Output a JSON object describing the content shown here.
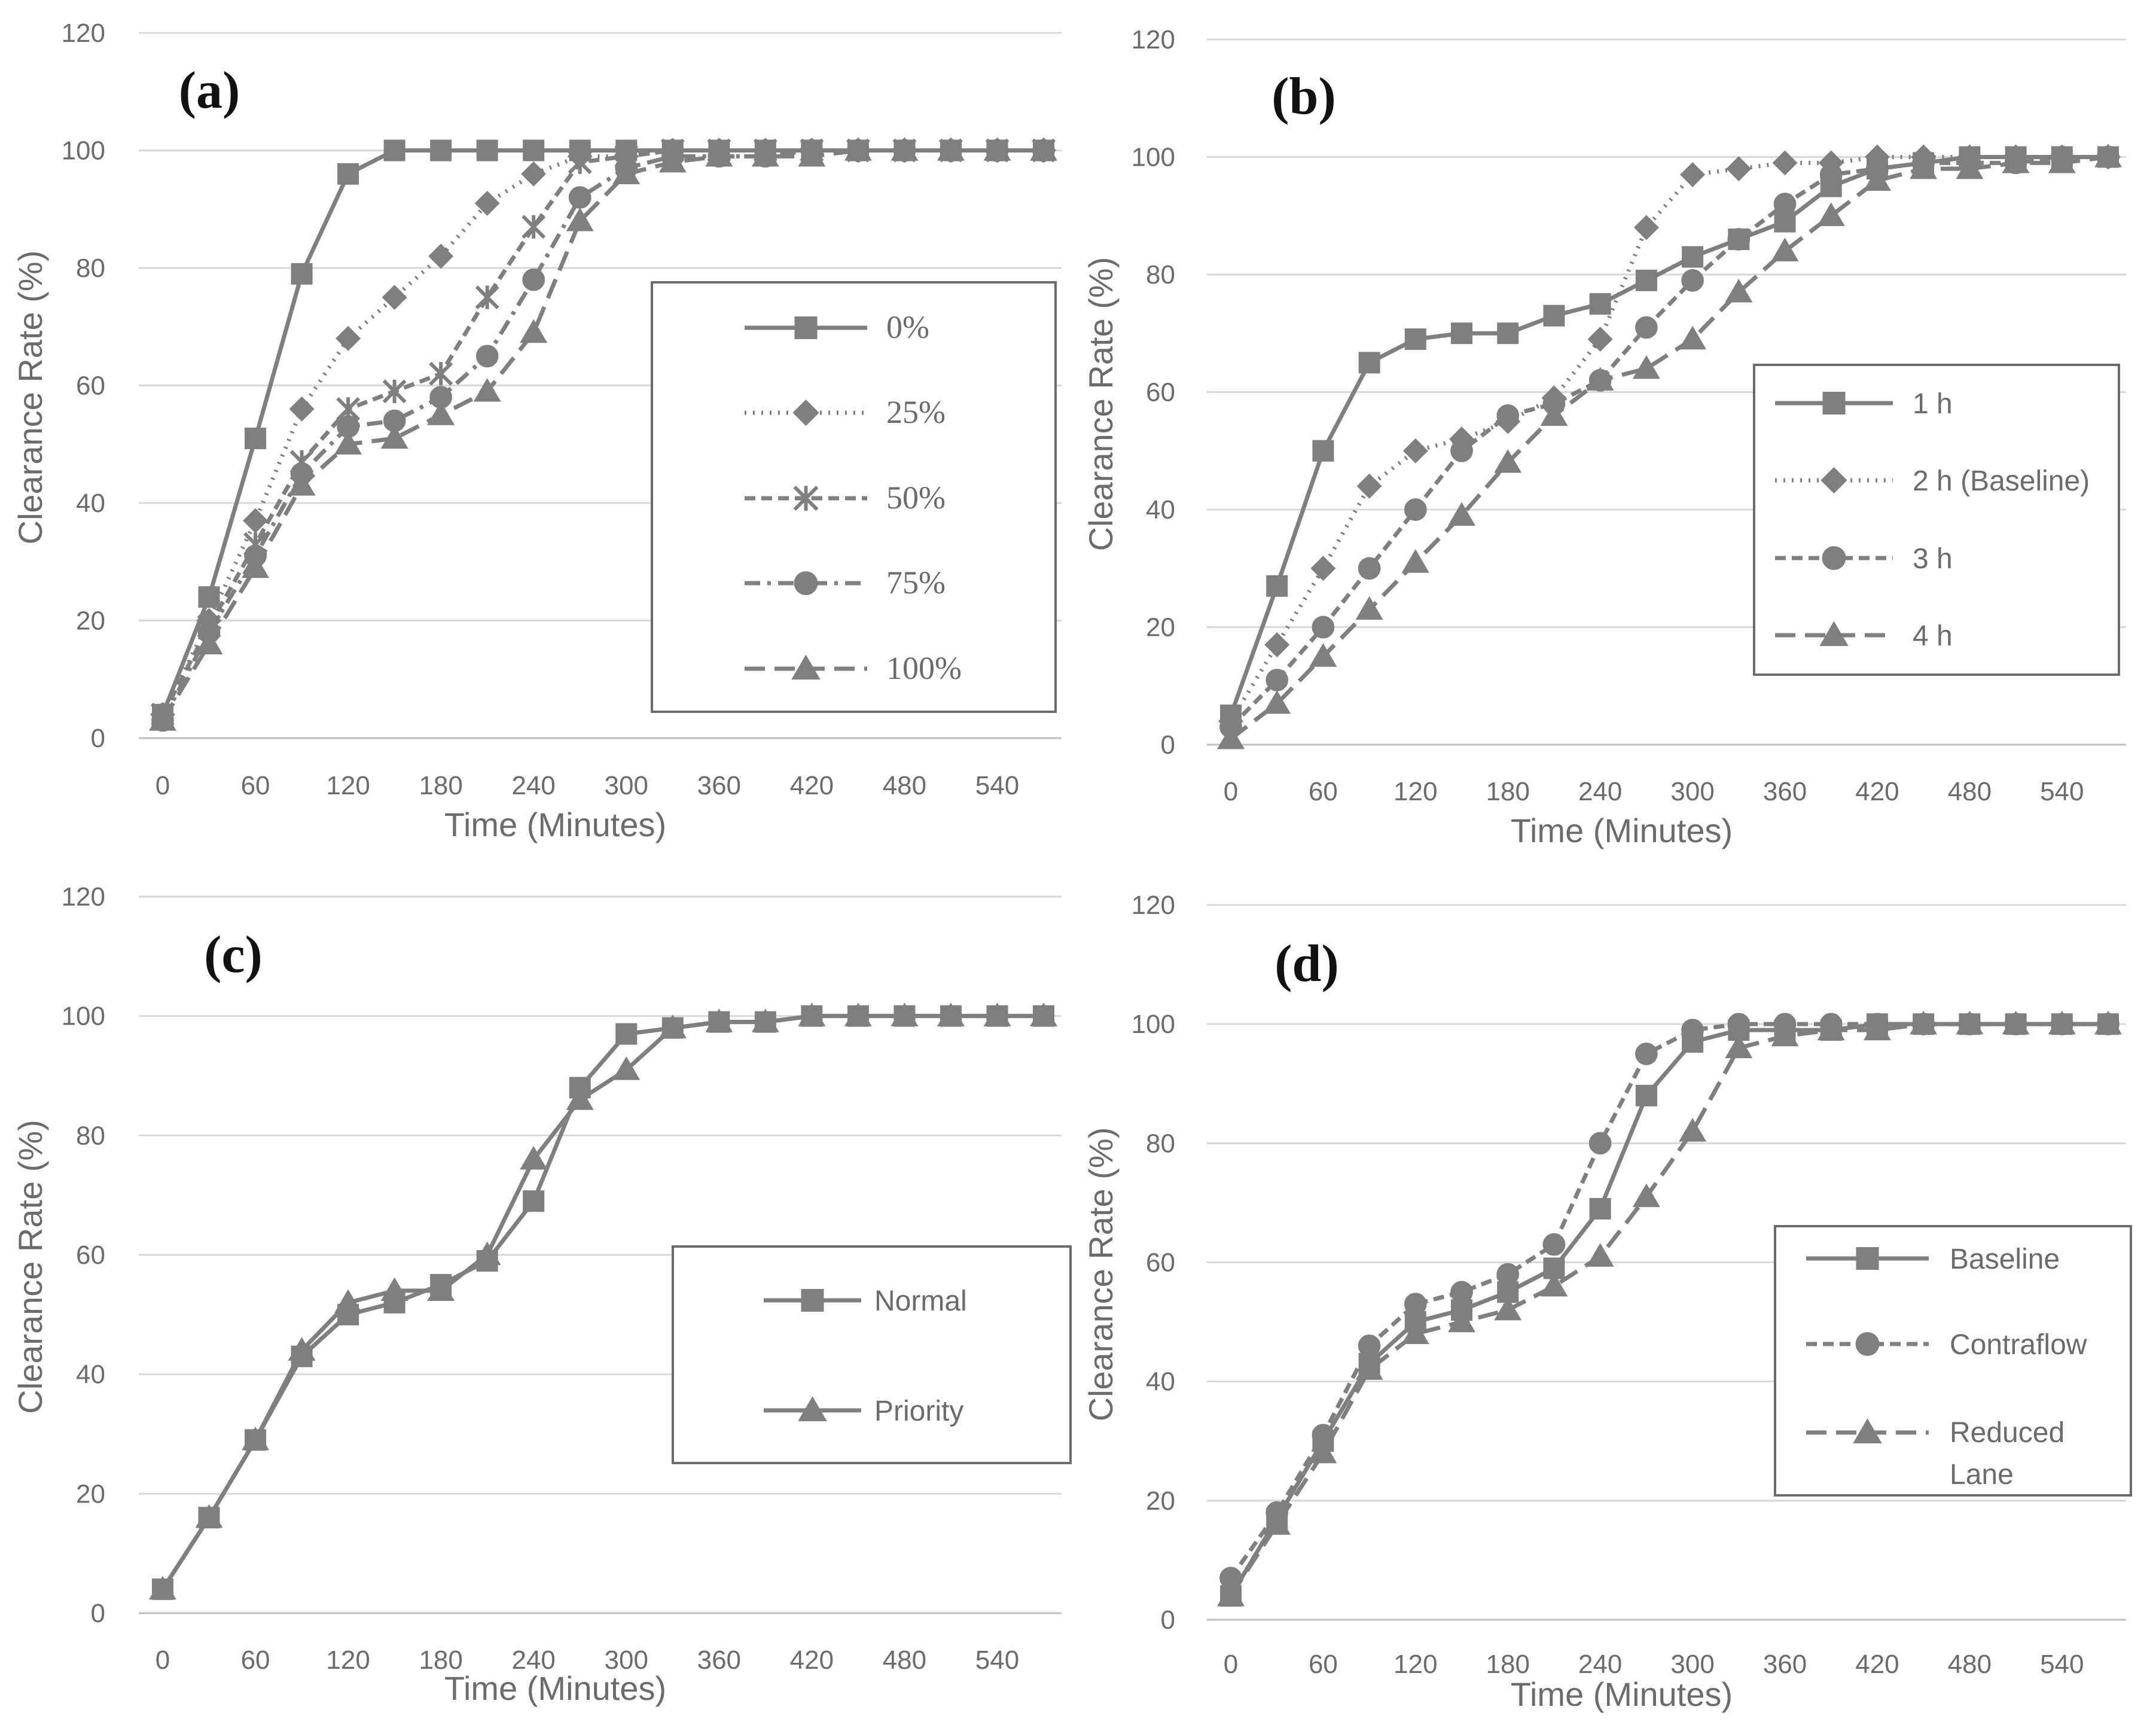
{
  "colors": {
    "series": "#7f7f7f",
    "grid": "#d9d9d9",
    "text": "#6b6b6b",
    "label": "#111111"
  },
  "chart_data": [
    {
      "type": "line",
      "panel_label": "(a)",
      "xlabel": "Time (Minutes)",
      "ylabel": "Clearance Rate (%)",
      "xlim": [
        0,
        570
      ],
      "ylim": [
        0,
        120
      ],
      "x_ticks": [
        "0",
        "60",
        "120",
        "180",
        "240",
        "300",
        "360",
        "420",
        "480",
        "540"
      ],
      "y_ticks": [
        "0",
        "20",
        "40",
        "60",
        "80",
        "100",
        "120"
      ],
      "legend_position": "right",
      "x": [
        0,
        30,
        60,
        90,
        120,
        150,
        180,
        210,
        240,
        270,
        300,
        330,
        360,
        390,
        420,
        450,
        480,
        510,
        540,
        570
      ],
      "series": [
        {
          "name": "0%",
          "marker": "square",
          "dash": "solid",
          "values": [
            4,
            24,
            51,
            79,
            96,
            100,
            100,
            100,
            100,
            100,
            100,
            100,
            100,
            100,
            100,
            100,
            100,
            100,
            100,
            100
          ]
        },
        {
          "name": "25%",
          "marker": "diamond",
          "dash": "dot",
          "values": [
            4,
            20,
            37,
            56,
            68,
            75,
            82,
            91,
            96,
            99,
            99,
            100,
            100,
            100,
            100,
            100,
            100,
            100,
            100,
            100
          ]
        },
        {
          "name": "50%",
          "marker": "cross",
          "dash": "dash",
          "values": [
            4,
            19,
            33,
            47,
            56,
            59,
            62,
            75,
            87,
            98,
            99,
            100,
            100,
            100,
            100,
            100,
            100,
            100,
            100,
            100
          ]
        },
        {
          "name": "75%",
          "marker": "circle",
          "dash": "dashdot",
          "values": [
            3,
            18,
            31,
            45,
            53,
            54,
            58,
            65,
            78,
            92,
            97,
            99,
            99,
            99,
            100,
            100,
            100,
            100,
            100,
            100
          ]
        },
        {
          "name": "100%",
          "marker": "triangle",
          "dash": "longdash",
          "values": [
            3,
            16,
            29,
            43,
            50,
            51,
            55,
            59,
            69,
            88,
            96,
            98,
            99,
            99,
            99,
            100,
            100,
            100,
            100,
            100
          ]
        }
      ]
    },
    {
      "type": "line",
      "panel_label": "(b)",
      "xlabel": "Time (Minutes)",
      "ylabel": "Clearance Rate (%)",
      "xlim": [
        0,
        570
      ],
      "ylim": [
        0,
        120
      ],
      "x_ticks": [
        "0",
        "60",
        "120",
        "180",
        "240",
        "300",
        "360",
        "420",
        "480",
        "540"
      ],
      "y_ticks": [
        "0",
        "20",
        "40",
        "60",
        "80",
        "100",
        "120"
      ],
      "legend_position": "right",
      "x": [
        0,
        30,
        60,
        90,
        120,
        150,
        180,
        210,
        240,
        270,
        300,
        330,
        360,
        390,
        420,
        450,
        480,
        510,
        540,
        570
      ],
      "series": [
        {
          "name": "1 h",
          "marker": "square",
          "dash": "solid",
          "values": [
            5,
            27,
            50,
            65,
            69,
            70,
            70,
            73,
            75,
            79,
            83,
            86,
            89,
            95,
            98,
            99,
            100,
            100,
            100,
            100
          ]
        },
        {
          "name": "2 h (Baseline)",
          "marker": "diamond",
          "dash": "dot",
          "values": [
            4,
            17,
            30,
            44,
            50,
            52,
            55,
            59,
            69,
            88,
            97,
            98,
            99,
            99,
            100,
            100,
            100,
            100,
            100,
            100
          ]
        },
        {
          "name": "3 h",
          "marker": "circle",
          "dash": "dash",
          "values": [
            3,
            11,
            20,
            30,
            40,
            50,
            56,
            58,
            62,
            71,
            79,
            86,
            92,
            97,
            98,
            99,
            99,
            99,
            100,
            100
          ]
        },
        {
          "name": "4 h",
          "marker": "triangle",
          "dash": "longdash",
          "values": [
            1,
            7,
            15,
            23,
            31,
            39,
            48,
            56,
            62,
            64,
            69,
            77,
            84,
            90,
            96,
            98,
            98,
            99,
            99,
            100
          ]
        }
      ]
    },
    {
      "type": "line",
      "panel_label": "(c)",
      "xlabel": "Time (Minutes)",
      "ylabel": "Clearance Rate (%)",
      "xlim": [
        0,
        570
      ],
      "ylim": [
        0,
        120
      ],
      "x_ticks": [
        "0",
        "60",
        "120",
        "180",
        "240",
        "300",
        "360",
        "420",
        "480",
        "540"
      ],
      "y_ticks": [
        "0",
        "20",
        "40",
        "60",
        "80",
        "100",
        "120"
      ],
      "legend_position": "right",
      "x": [
        0,
        30,
        60,
        90,
        120,
        150,
        180,
        210,
        240,
        270,
        300,
        330,
        360,
        390,
        420,
        450,
        480,
        510,
        540,
        570
      ],
      "series": [
        {
          "name": "Normal",
          "marker": "square",
          "dash": "solid",
          "values": [
            4,
            16,
            29,
            43,
            50,
            52,
            55,
            59,
            69,
            88,
            97,
            98,
            99,
            99,
            100,
            100,
            100,
            100,
            100,
            100
          ]
        },
        {
          "name": "Priority",
          "marker": "triangle",
          "dash": "solid",
          "values": [
            4,
            16,
            29,
            44,
            52,
            54,
            54,
            60,
            76,
            86,
            91,
            98,
            99,
            99,
            100,
            100,
            100,
            100,
            100,
            100
          ]
        }
      ]
    },
    {
      "type": "line",
      "panel_label": "(d)",
      "xlabel": "Time (Minutes)",
      "ylabel": "Clearance Rate (%)",
      "xlim": [
        0,
        570
      ],
      "ylim": [
        0,
        120
      ],
      "x_ticks": [
        "0",
        "60",
        "120",
        "180",
        "240",
        "300",
        "360",
        "420",
        "480",
        "540"
      ],
      "y_ticks": [
        "0",
        "20",
        "40",
        "60",
        "80",
        "100",
        "120"
      ],
      "legend_position": "right",
      "x": [
        0,
        30,
        60,
        90,
        120,
        150,
        180,
        210,
        240,
        270,
        300,
        330,
        360,
        390,
        420,
        450,
        480,
        510,
        540,
        570
      ],
      "series": [
        {
          "name": "Baseline",
          "marker": "square",
          "dash": "solid",
          "values": [
            4,
            17,
            30,
            43,
            50,
            52,
            55,
            59,
            69,
            88,
            97,
            99,
            99,
            99,
            100,
            100,
            100,
            100,
            100,
            100
          ]
        },
        {
          "name": "Contraflow",
          "marker": "circle",
          "dash": "dash",
          "values": [
            7,
            18,
            31,
            46,
            53,
            55,
            58,
            63,
            80,
            95,
            99,
            100,
            100,
            100,
            100,
            100,
            100,
            100,
            100,
            100
          ]
        },
        {
          "name": "Reduced Lane",
          "marker": "triangle",
          "dash": "longdash",
          "values": [
            4,
            16,
            28,
            42,
            48,
            50,
            52,
            56,
            61,
            71,
            82,
            96,
            98,
            99,
            99,
            100,
            100,
            100,
            100,
            100
          ]
        }
      ]
    }
  ]
}
